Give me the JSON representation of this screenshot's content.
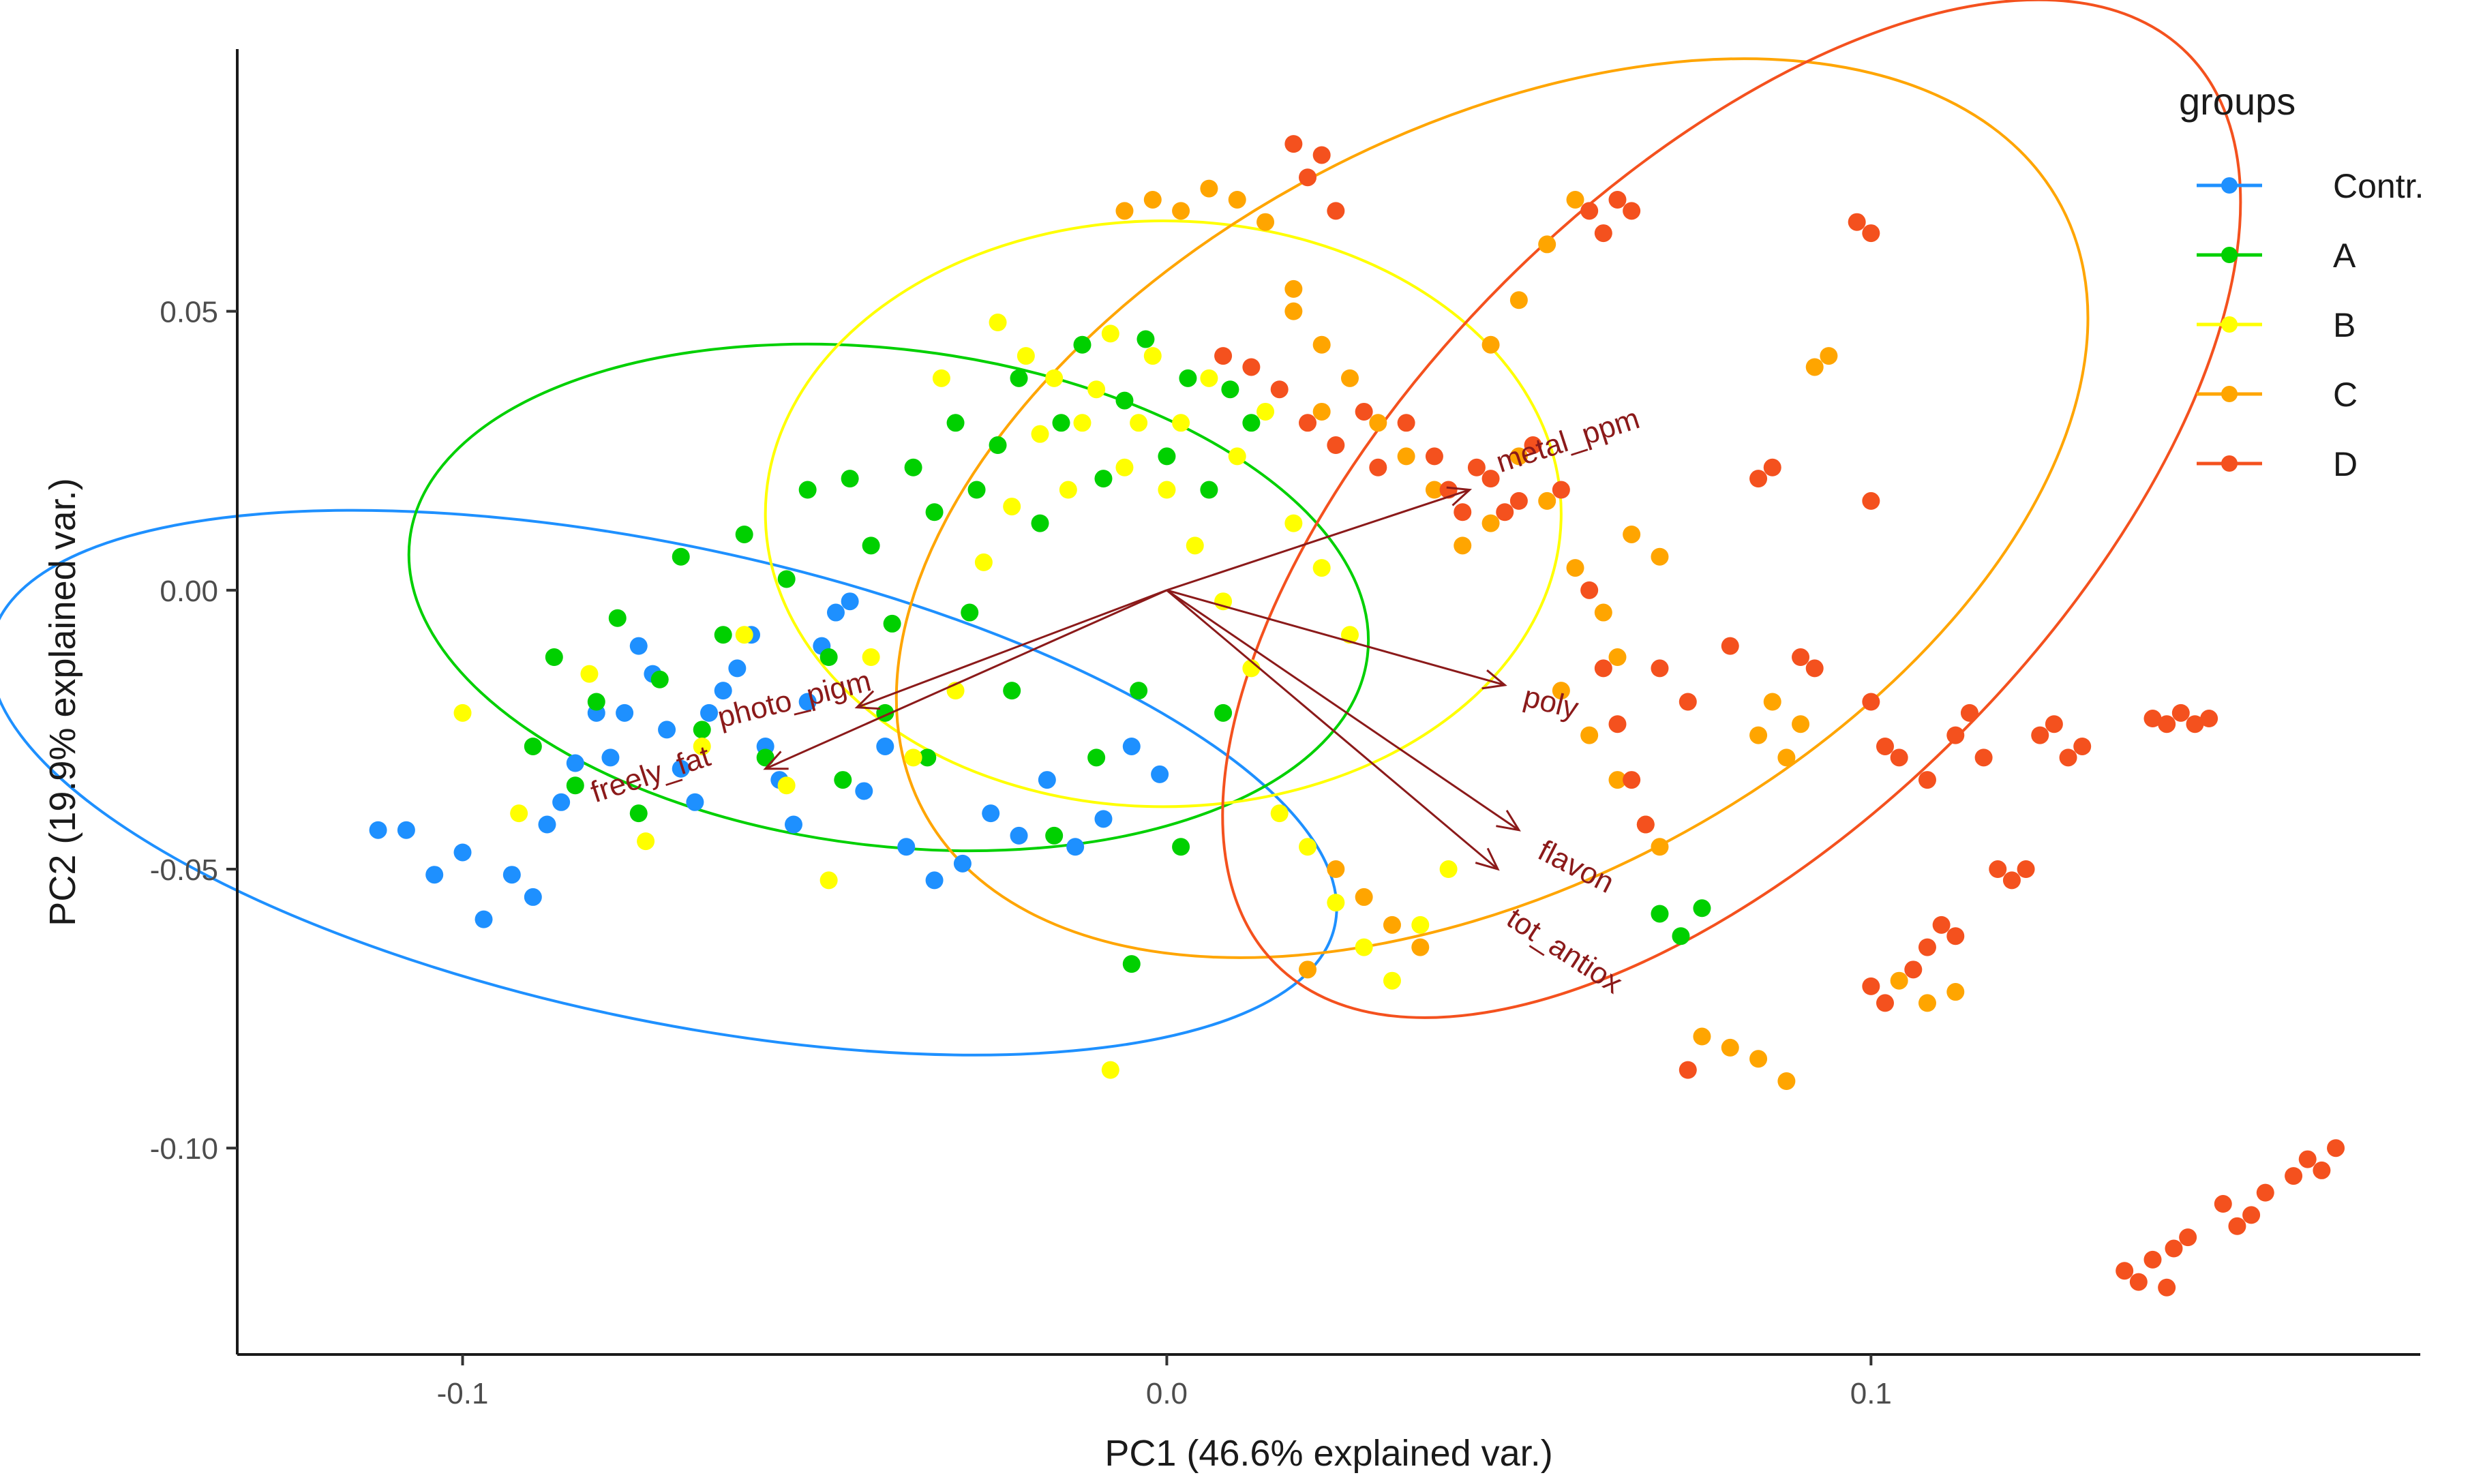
{
  "chart_data": {
    "type": "scatter",
    "title": "",
    "xlabel": "PC1 (46.6% explained var.)",
    "ylabel": "PC2 (19.9% explained var.)",
    "xlim": [
      -0.132,
      0.178
    ],
    "ylim": [
      -0.137,
      0.097
    ],
    "x_ticks": [
      {
        "value": -0.1,
        "label": "-0.1"
      },
      {
        "value": 0.0,
        "label": "0.0"
      },
      {
        "value": 0.1,
        "label": "0.1"
      }
    ],
    "y_ticks": [
      {
        "value": 0.05,
        "label": "0.05"
      },
      {
        "value": 0.0,
        "label": "0.00"
      },
      {
        "value": -0.05,
        "label": "-0.05"
      },
      {
        "value": -0.1,
        "label": "-0.10"
      }
    ],
    "grid": false,
    "legend": {
      "title": "groups",
      "position": "top-right"
    },
    "series": [
      {
        "name": "Contr.",
        "color": "#1E90FF",
        "ellipse": {
          "cx": -0.0715,
          "cy": -0.0345,
          "rx": 0.0975,
          "ry": 0.0425,
          "angle_deg": 12.0
        },
        "points": [
          [
            -0.112,
            -0.043
          ],
          [
            -0.108,
            -0.043
          ],
          [
            -0.104,
            -0.051
          ],
          [
            -0.1,
            -0.047
          ],
          [
            -0.097,
            -0.059
          ],
          [
            -0.093,
            -0.051
          ],
          [
            -0.09,
            -0.055
          ],
          [
            -0.088,
            -0.042
          ],
          [
            -0.086,
            -0.038
          ],
          [
            -0.084,
            -0.031
          ],
          [
            -0.081,
            -0.022
          ],
          [
            -0.079,
            -0.03
          ],
          [
            -0.077,
            -0.022
          ],
          [
            -0.075,
            -0.01
          ],
          [
            -0.073,
            -0.015
          ],
          [
            -0.071,
            -0.025
          ],
          [
            -0.069,
            -0.032
          ],
          [
            -0.067,
            -0.038
          ],
          [
            -0.065,
            -0.022
          ],
          [
            -0.063,
            -0.018
          ],
          [
            -0.061,
            -0.014
          ],
          [
            -0.059,
            -0.008
          ],
          [
            -0.057,
            -0.028
          ],
          [
            -0.055,
            -0.034
          ],
          [
            -0.053,
            -0.042
          ],
          [
            -0.051,
            -0.02
          ],
          [
            -0.049,
            -0.01
          ],
          [
            -0.047,
            -0.004
          ],
          [
            -0.045,
            -0.002
          ],
          [
            -0.043,
            -0.036
          ],
          [
            -0.04,
            -0.028
          ],
          [
            -0.037,
            -0.046
          ],
          [
            -0.033,
            -0.052
          ],
          [
            -0.029,
            -0.049
          ],
          [
            -0.025,
            -0.04
          ],
          [
            -0.021,
            -0.044
          ],
          [
            -0.017,
            -0.034
          ],
          [
            -0.013,
            -0.046
          ],
          [
            -0.009,
            -0.041
          ],
          [
            -0.005,
            -0.028
          ],
          [
            -0.001,
            -0.033
          ]
        ]
      },
      {
        "name": "A",
        "color": "#00D000",
        "ellipse": {
          "cx": -0.0395,
          "cy": -0.0013,
          "rx": 0.0685,
          "ry": 0.0445,
          "angle_deg": 7.0
        },
        "points": [
          [
            -0.09,
            -0.028
          ],
          [
            -0.087,
            -0.012
          ],
          [
            -0.084,
            -0.035
          ],
          [
            -0.081,
            -0.02
          ],
          [
            -0.078,
            -0.005
          ],
          [
            -0.075,
            -0.04
          ],
          [
            -0.072,
            -0.016
          ],
          [
            -0.069,
            0.006
          ],
          [
            -0.066,
            -0.025
          ],
          [
            -0.063,
            -0.008
          ],
          [
            -0.06,
            0.01
          ],
          [
            -0.057,
            -0.03
          ],
          [
            -0.054,
            0.002
          ],
          [
            -0.051,
            0.018
          ],
          [
            -0.048,
            -0.012
          ],
          [
            -0.045,
            0.02
          ],
          [
            -0.042,
            0.008
          ],
          [
            -0.039,
            -0.006
          ],
          [
            -0.036,
            0.022
          ],
          [
            -0.033,
            0.014
          ],
          [
            -0.03,
            0.03
          ],
          [
            -0.027,
            0.018
          ],
          [
            -0.024,
            0.026
          ],
          [
            -0.021,
            0.038
          ],
          [
            -0.018,
            0.012
          ],
          [
            -0.015,
            0.03
          ],
          [
            -0.012,
            0.044
          ],
          [
            -0.009,
            0.02
          ],
          [
            -0.006,
            0.034
          ],
          [
            -0.003,
            0.045
          ],
          [
            0.0,
            0.024
          ],
          [
            0.003,
            0.038
          ],
          [
            0.006,
            0.018
          ],
          [
            0.009,
            0.036
          ],
          [
            0.012,
            0.03
          ],
          [
            -0.046,
            -0.034
          ],
          [
            -0.04,
            -0.022
          ],
          [
            -0.034,
            -0.03
          ],
          [
            -0.028,
            -0.004
          ],
          [
            -0.022,
            -0.018
          ],
          [
            -0.016,
            -0.044
          ],
          [
            -0.01,
            -0.03
          ],
          [
            -0.004,
            -0.018
          ],
          [
            0.002,
            -0.046
          ],
          [
            0.008,
            -0.022
          ],
          [
            0.07,
            -0.058
          ],
          [
            0.073,
            -0.062
          ],
          [
            0.076,
            -0.057
          ],
          [
            -0.005,
            -0.067
          ]
        ]
      },
      {
        "name": "B",
        "color": "#FFFF00",
        "ellipse": {
          "cx": -0.0005,
          "cy": 0.0137,
          "rx": 0.0565,
          "ry": 0.0525,
          "angle_deg": 0.0
        },
        "points": [
          [
            -0.1,
            -0.022
          ],
          [
            -0.092,
            -0.04
          ],
          [
            -0.082,
            -0.015
          ],
          [
            -0.074,
            -0.045
          ],
          [
            -0.066,
            -0.028
          ],
          [
            -0.06,
            -0.008
          ],
          [
            -0.054,
            -0.035
          ],
          [
            -0.048,
            -0.052
          ],
          [
            -0.042,
            -0.012
          ],
          [
            -0.036,
            -0.03
          ],
          [
            -0.03,
            -0.018
          ],
          [
            -0.026,
            0.005
          ],
          [
            -0.022,
            0.015
          ],
          [
            -0.018,
            0.028
          ],
          [
            -0.014,
            0.018
          ],
          [
            -0.01,
            0.036
          ],
          [
            -0.006,
            0.022
          ],
          [
            -0.002,
            0.042
          ],
          [
            0.002,
            0.03
          ],
          [
            0.006,
            0.038
          ],
          [
            0.01,
            0.024
          ],
          [
            0.014,
            0.032
          ],
          [
            0.018,
            0.012
          ],
          [
            0.022,
            0.004
          ],
          [
            0.026,
            -0.008
          ],
          [
            -0.02,
            0.042
          ],
          [
            -0.016,
            0.038
          ],
          [
            -0.012,
            0.03
          ],
          [
            -0.008,
            0.046
          ],
          [
            -0.004,
            0.03
          ],
          [
            0.0,
            0.018
          ],
          [
            0.004,
            0.008
          ],
          [
            0.008,
            -0.002
          ],
          [
            0.012,
            -0.014
          ],
          [
            0.016,
            -0.04
          ],
          [
            0.02,
            -0.046
          ],
          [
            0.024,
            -0.056
          ],
          [
            0.028,
            -0.064
          ],
          [
            0.032,
            -0.07
          ],
          [
            0.036,
            -0.06
          ],
          [
            0.04,
            -0.05
          ],
          [
            -0.008,
            -0.086
          ],
          [
            -0.024,
            0.048
          ],
          [
            -0.032,
            0.038
          ]
        ]
      },
      {
        "name": "C",
        "color": "#FFA500",
        "ellipse": {
          "cx": 0.0462,
          "cy": 0.0147,
          "rx": 0.0915,
          "ry": 0.0675,
          "angle_deg": -28.0
        },
        "points": [
          [
            -0.006,
            0.068
          ],
          [
            -0.002,
            0.07
          ],
          [
            0.002,
            0.068
          ],
          [
            0.006,
            0.072
          ],
          [
            0.01,
            0.07
          ],
          [
            0.014,
            0.066
          ],
          [
            0.018,
            0.05
          ],
          [
            0.022,
            0.044
          ],
          [
            0.026,
            0.038
          ],
          [
            0.03,
            0.03
          ],
          [
            0.034,
            0.024
          ],
          [
            0.038,
            0.018
          ],
          [
            0.042,
            0.008
          ],
          [
            0.046,
            0.044
          ],
          [
            0.05,
            0.052
          ],
          [
            0.054,
            0.062
          ],
          [
            0.058,
            0.07
          ],
          [
            0.046,
            0.012
          ],
          [
            0.05,
            0.024
          ],
          [
            0.054,
            0.016
          ],
          [
            0.058,
            0.004
          ],
          [
            0.062,
            -0.004
          ],
          [
            0.064,
            -0.012
          ],
          [
            0.056,
            -0.018
          ],
          [
            0.06,
            -0.026
          ],
          [
            0.064,
            -0.034
          ],
          [
            0.068,
            -0.042
          ],
          [
            0.07,
            -0.046
          ],
          [
            0.084,
            -0.026
          ],
          [
            0.086,
            -0.02
          ],
          [
            0.088,
            -0.03
          ],
          [
            0.09,
            -0.024
          ],
          [
            0.092,
            0.04
          ],
          [
            0.094,
            0.042
          ],
          [
            0.076,
            -0.08
          ],
          [
            0.08,
            -0.082
          ],
          [
            0.084,
            -0.084
          ],
          [
            0.088,
            -0.088
          ],
          [
            0.104,
            -0.07
          ],
          [
            0.108,
            -0.074
          ],
          [
            0.112,
            -0.072
          ],
          [
            0.028,
            -0.055
          ],
          [
            0.032,
            -0.06
          ],
          [
            0.036,
            -0.064
          ],
          [
            0.02,
            -0.068
          ],
          [
            0.024,
            -0.05
          ],
          [
            0.018,
            0.054
          ],
          [
            0.022,
            0.032
          ],
          [
            0.066,
            0.01
          ],
          [
            0.07,
            0.006
          ]
        ]
      },
      {
        "name": "D",
        "color": "#F4511E",
        "ellipse": {
          "cx": 0.0802,
          "cy": 0.0146,
          "rx": 0.0915,
          "ry": 0.0575,
          "angle_deg": -45.0
        },
        "points": [
          [
            0.018,
            0.08
          ],
          [
            0.02,
            0.074
          ],
          [
            0.022,
            0.078
          ],
          [
            0.024,
            0.068
          ],
          [
            0.012,
            0.04
          ],
          [
            0.016,
            0.036
          ],
          [
            0.02,
            0.03
          ],
          [
            0.024,
            0.026
          ],
          [
            0.028,
            0.032
          ],
          [
            0.03,
            0.022
          ],
          [
            0.034,
            0.03
          ],
          [
            0.038,
            0.024
          ],
          [
            0.04,
            0.018
          ],
          [
            0.042,
            0.014
          ],
          [
            0.044,
            0.022
          ],
          [
            0.046,
            0.02
          ],
          [
            0.048,
            0.014
          ],
          [
            0.05,
            0.016
          ],
          [
            0.052,
            0.026
          ],
          [
            0.056,
            0.018
          ],
          [
            0.06,
            0.068
          ],
          [
            0.062,
            0.064
          ],
          [
            0.064,
            0.07
          ],
          [
            0.066,
            0.068
          ],
          [
            0.06,
            0.0
          ],
          [
            0.062,
            -0.014
          ],
          [
            0.064,
            -0.024
          ],
          [
            0.066,
            -0.034
          ],
          [
            0.068,
            -0.042
          ],
          [
            0.07,
            -0.014
          ],
          [
            0.074,
            -0.02
          ],
          [
            0.08,
            -0.01
          ],
          [
            0.084,
            0.02
          ],
          [
            0.086,
            0.022
          ],
          [
            0.09,
            -0.012
          ],
          [
            0.092,
            -0.014
          ],
          [
            0.1,
            -0.02
          ],
          [
            0.102,
            -0.028
          ],
          [
            0.104,
            -0.03
          ],
          [
            0.108,
            -0.034
          ],
          [
            0.112,
            -0.026
          ],
          [
            0.114,
            -0.022
          ],
          [
            0.116,
            -0.03
          ],
          [
            0.118,
            -0.05
          ],
          [
            0.12,
            -0.052
          ],
          [
            0.122,
            -0.05
          ],
          [
            0.124,
            -0.026
          ],
          [
            0.126,
            -0.024
          ],
          [
            0.128,
            -0.03
          ],
          [
            0.13,
            -0.028
          ],
          [
            0.1,
            -0.071
          ],
          [
            0.102,
            -0.074
          ],
          [
            0.106,
            -0.068
          ],
          [
            0.108,
            -0.064
          ],
          [
            0.11,
            -0.06
          ],
          [
            0.112,
            -0.062
          ],
          [
            0.098,
            0.066
          ],
          [
            0.1,
            0.064
          ],
          [
            0.14,
            -0.023
          ],
          [
            0.142,
            -0.024
          ],
          [
            0.144,
            -0.022
          ],
          [
            0.146,
            -0.024
          ],
          [
            0.148,
            -0.023
          ],
          [
            0.15,
            -0.11
          ],
          [
            0.152,
            -0.114
          ],
          [
            0.154,
            -0.112
          ],
          [
            0.156,
            -0.108
          ],
          [
            0.16,
            -0.105
          ],
          [
            0.162,
            -0.102
          ],
          [
            0.164,
            -0.104
          ],
          [
            0.166,
            -0.1
          ],
          [
            0.136,
            -0.122
          ],
          [
            0.138,
            -0.124
          ],
          [
            0.14,
            -0.12
          ],
          [
            0.142,
            -0.125
          ],
          [
            0.143,
            -0.118
          ],
          [
            0.145,
            -0.116
          ],
          [
            0.074,
            -0.086
          ],
          [
            0.1,
            0.016
          ],
          [
            0.008,
            0.042
          ]
        ]
      }
    ],
    "loadings": [
      {
        "name": "metal_ppm",
        "x": 0.043,
        "y": 0.018
      },
      {
        "name": "poly",
        "x": 0.048,
        "y": -0.017
      },
      {
        "name": "flavon",
        "x": 0.05,
        "y": -0.043
      },
      {
        "name": "tot_antiox",
        "x": 0.047,
        "y": -0.05
      },
      {
        "name": "photo_pigm",
        "x": -0.044,
        "y": -0.021
      },
      {
        "name": "freely_fat",
        "x": -0.057,
        "y": -0.032
      }
    ]
  }
}
